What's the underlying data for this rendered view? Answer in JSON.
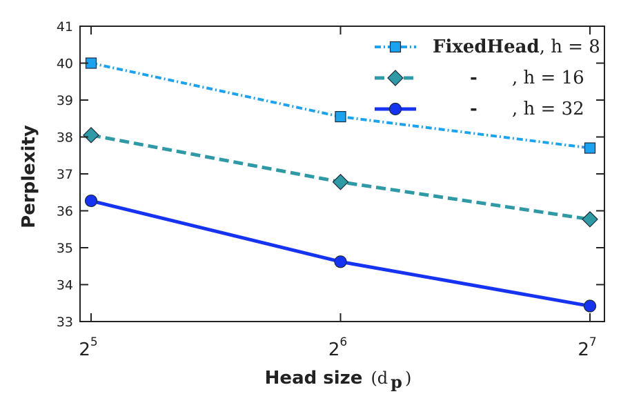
{
  "chart_data": {
    "type": "line",
    "xlabel": "Head size",
    "xlabel_symbol": "(d",
    "xlabel_symbol_sub": "p",
    "xlabel_symbol_close": ")",
    "ylabel": "Perplexity",
    "x_scale": "log2",
    "x": [
      32,
      64,
      128
    ],
    "x_tick_labels": [
      {
        "base": "2",
        "exp": "5"
      },
      {
        "base": "2",
        "exp": "6"
      },
      {
        "base": "2",
        "exp": "7"
      }
    ],
    "ylim": [
      33,
      41
    ],
    "y_ticks": [
      33,
      34,
      35,
      36,
      37,
      38,
      39,
      40,
      41
    ],
    "grid": false,
    "legend_position": "top-right",
    "series": [
      {
        "legend_prefix": "FixedHead",
        "legend_suffix": ", h = 8",
        "values": [
          40.0,
          38.55,
          37.7
        ],
        "color": "#1aa3f0",
        "marker": "square",
        "linestyle": "dashdot"
      },
      {
        "legend_prefix": "-",
        "legend_suffix": ", h = 16",
        "values": [
          38.05,
          36.78,
          35.77
        ],
        "color": "#2e9aa6",
        "marker": "diamond",
        "linestyle": "dashed"
      },
      {
        "legend_prefix": "-",
        "legend_suffix": ", h = 32",
        "values": [
          36.27,
          34.62,
          33.42
        ],
        "color": "#1733f2",
        "marker": "circle",
        "linestyle": "solid"
      }
    ]
  }
}
